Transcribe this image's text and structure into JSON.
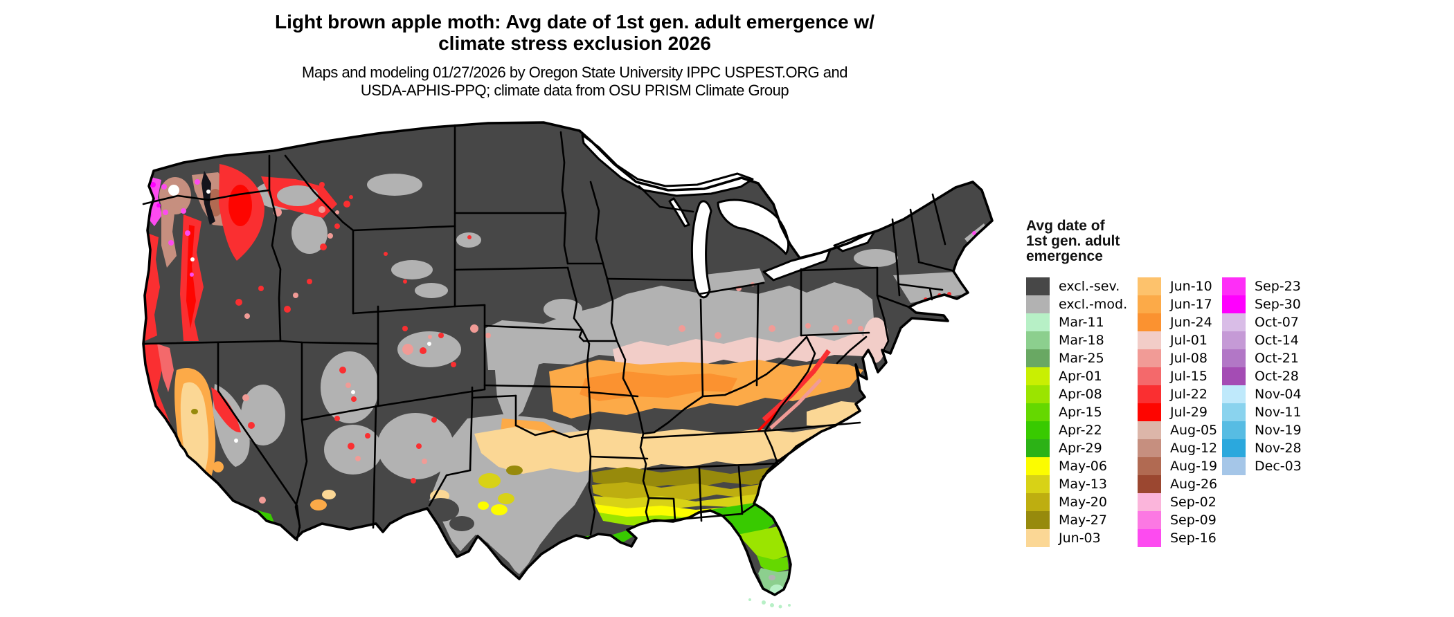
{
  "header": {
    "title_line1": "Light brown apple moth: Avg date of 1st gen. adult emergence w/",
    "title_line2": "climate stress exclusion 2026",
    "subtitle_line1": "Maps and modeling 01/27/2026 by Oregon State University IPPC USPEST.ORG and",
    "subtitle_line2": "USDA-APHIS-PPQ; climate data from OSU PRISM Climate Group"
  },
  "legend": {
    "title_lines": [
      "Avg date of",
      "1st gen. adult",
      "emergence"
    ],
    "columns": [
      [
        {
          "label": "excl.-sev.",
          "color": "#474747"
        },
        {
          "label": "excl.-mod.",
          "color": "#b2b2b2"
        },
        {
          "label": "Mar-11",
          "color": "#b7f0c6"
        },
        {
          "label": "Mar-18",
          "color": "#8ccf8e"
        },
        {
          "label": "Mar-25",
          "color": "#69a863"
        },
        {
          "label": "Apr-01",
          "color": "#c9ef02"
        },
        {
          "label": "Apr-08",
          "color": "#9be400"
        },
        {
          "label": "Apr-15",
          "color": "#65d800"
        },
        {
          "label": "Apr-22",
          "color": "#38ca00"
        },
        {
          "label": "Apr-29",
          "color": "#2cb216"
        },
        {
          "label": "May-06",
          "color": "#fcfc00"
        },
        {
          "label": "May-13",
          "color": "#d8d216"
        },
        {
          "label": "May-20",
          "color": "#beae10"
        },
        {
          "label": "May-27",
          "color": "#978a0c"
        },
        {
          "label": "Jun-03",
          "color": "#fbd795"
        }
      ],
      [
        {
          "label": "Jun-10",
          "color": "#fdc26c"
        },
        {
          "label": "Jun-17",
          "color": "#fcaa48"
        },
        {
          "label": "Jun-24",
          "color": "#fb9230"
        },
        {
          "label": "Jul-01",
          "color": "#f2cdc8"
        },
        {
          "label": "Jul-08",
          "color": "#f19b96"
        },
        {
          "label": "Jul-15",
          "color": "#f4696b"
        },
        {
          "label": "Jul-22",
          "color": "#fa2f31"
        },
        {
          "label": "Jul-29",
          "color": "#fe0500"
        },
        {
          "label": "Aug-05",
          "color": "#dcb6a9"
        },
        {
          "label": "Aug-12",
          "color": "#c68f7f"
        },
        {
          "label": "Aug-19",
          "color": "#b16a52"
        },
        {
          "label": "Aug-26",
          "color": "#9b4730"
        },
        {
          "label": "Sep-02",
          "color": "#fbb5db"
        },
        {
          "label": "Sep-09",
          "color": "#fc78e3"
        },
        {
          "label": "Sep-16",
          "color": "#fd4bf0"
        }
      ],
      [
        {
          "label": "Sep-23",
          "color": "#fe2ef7"
        },
        {
          "label": "Sep-30",
          "color": "#ff00fe"
        },
        {
          "label": "Oct-07",
          "color": "#d9bde7"
        },
        {
          "label": "Oct-14",
          "color": "#c59ad6"
        },
        {
          "label": "Oct-21",
          "color": "#b277c6"
        },
        {
          "label": "Oct-28",
          "color": "#a44cb4"
        },
        {
          "label": "Nov-04",
          "color": "#bfe9fb"
        },
        {
          "label": "Nov-11",
          "color": "#8ad3ee"
        },
        {
          "label": "Nov-19",
          "color": "#57bce3"
        },
        {
          "label": "Nov-28",
          "color": "#2ba8dd"
        },
        {
          "label": "Dec-03",
          "color": "#a5c6e8"
        }
      ]
    ]
  },
  "map": {
    "region": "Contiguous United States",
    "water_color": "#ffffff",
    "border_color": "#000000"
  }
}
